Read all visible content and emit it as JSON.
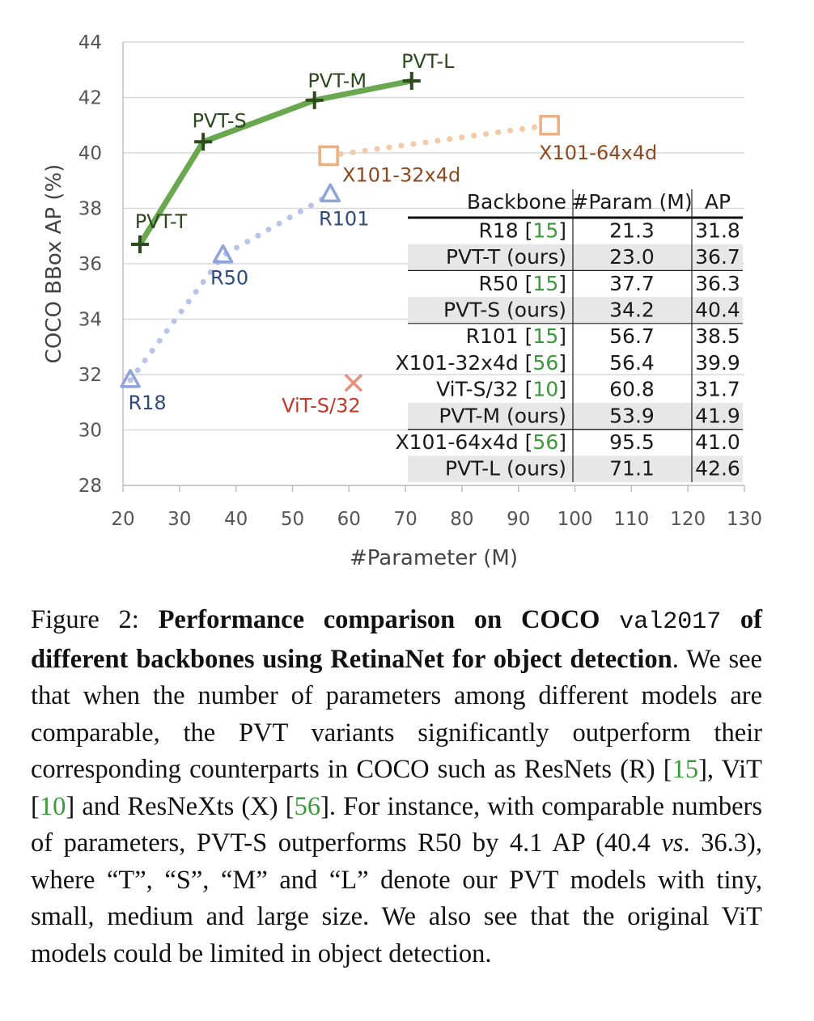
{
  "chart_data": {
    "type": "scatter",
    "xlabel": "#Parameter (M)",
    "ylabel": "COCO BBox AP (%)",
    "xlim": [
      20,
      130
    ],
    "ylim": [
      28,
      44
    ],
    "xticks": [
      "20",
      "30",
      "40",
      "50",
      "60",
      "70",
      "80",
      "90",
      "100",
      "110",
      "120",
      "130"
    ],
    "yticks": [
      "28",
      "30",
      "32",
      "34",
      "36",
      "38",
      "40",
      "42",
      "44"
    ],
    "grid": "horizontal",
    "series": [
      {
        "marker": "plus",
        "line": "solid",
        "color": "#6aa84f",
        "marker_color": "#2d4a1e",
        "points": [
          {
            "label": "PVT-T",
            "x": 23.0,
            "y": 36.7
          },
          {
            "label": "PVT-S",
            "x": 34.2,
            "y": 40.4
          },
          {
            "label": "PVT-M",
            "x": 53.9,
            "y": 41.9
          },
          {
            "label": "PVT-L",
            "x": 71.1,
            "y": 42.6
          }
        ]
      },
      {
        "marker": "triangle",
        "line": "dotted",
        "color": "#b7c6e8",
        "marker_color": "#8ea3d8",
        "points": [
          {
            "label": "R18",
            "x": 21.3,
            "y": 31.8
          },
          {
            "label": "R50",
            "x": 37.7,
            "y": 36.3
          },
          {
            "label": "R101",
            "x": 56.7,
            "y": 38.5
          }
        ]
      },
      {
        "marker": "square",
        "line": "dotted",
        "color": "#f3c9a6",
        "marker_color": "#e8b084",
        "points": [
          {
            "label": "X101-32x4d",
            "x": 56.4,
            "y": 39.9
          },
          {
            "label": "X101-64x4d",
            "x": 95.5,
            "y": 41.0
          }
        ]
      },
      {
        "marker": "cross",
        "line": "none",
        "color": "#e8907a",
        "marker_color": "#e8907a",
        "points": [
          {
            "label": "ViT-S/32",
            "x": 60.8,
            "y": 31.7
          }
        ]
      }
    ],
    "label_colors": {
      "PVT": "#2d4a1e",
      "R": "#2f4b7c",
      "X": "#8b4a1f",
      "ViT": "#c0392b"
    },
    "table": {
      "headers": [
        "Backbone",
        "#Param (M)",
        "AP"
      ],
      "rows": [
        {
          "name": "R18",
          "cite": "15",
          "param": "21.3",
          "ap": "31.8",
          "shaded": false
        },
        {
          "name": "PVT-T (ours)",
          "cite": "",
          "param": "23.0",
          "ap": "36.7",
          "shaded": true
        },
        {
          "name": "R50",
          "cite": "15",
          "param": "37.7",
          "ap": "36.3",
          "shaded": false
        },
        {
          "name": "PVT-S (ours)",
          "cite": "",
          "param": "34.2",
          "ap": "40.4",
          "shaded": true
        },
        {
          "name": "R101",
          "cite": "15",
          "param": "56.7",
          "ap": "38.5",
          "shaded": false
        },
        {
          "name": "X101-32x4d",
          "cite": "56",
          "param": "56.4",
          "ap": "39.9",
          "shaded": false
        },
        {
          "name": "ViT-S/32",
          "cite": "10",
          "param": "60.8",
          "ap": "31.7",
          "shaded": false
        },
        {
          "name": "PVT-M (ours)",
          "cite": "",
          "param": "53.9",
          "ap": "41.9",
          "shaded": true
        },
        {
          "name": "X101-64x4d",
          "cite": "56",
          "param": "95.5",
          "ap": "41.0",
          "shaded": false
        },
        {
          "name": "PVT-L (ours)",
          "cite": "",
          "param": "71.1",
          "ap": "42.6",
          "shaded": true
        }
      ],
      "group_separators_after": [
        1,
        3,
        7
      ]
    }
  },
  "caption": {
    "prefix": "Figure 2: ",
    "bold_a": "Performance comparison on COCO ",
    "mono": "val2017",
    "bold_b": " of different backbones using RetinaNet for object detection",
    "t1": ". We see that when the number of parameters among different models are comparable, the PVT variants significantly outperform their corresponding counterparts in COCO such as ResNets (R) [",
    "c1": "15",
    "t2": "], ViT [",
    "c2": "10",
    "t3": "] and ResNeXts (X) [",
    "c3": "56",
    "t4": "]. For instance, with comparable numbers of parameters, PVT-S outperforms R50 by 4.1 AP (40.4 ",
    "vs": "vs",
    "t5": ". 36.3), where “T”, “S”, “M” and “L” denote our PVT models with tiny, small, medium and large size. We also see that the original ViT models could be limited in object detection."
  }
}
